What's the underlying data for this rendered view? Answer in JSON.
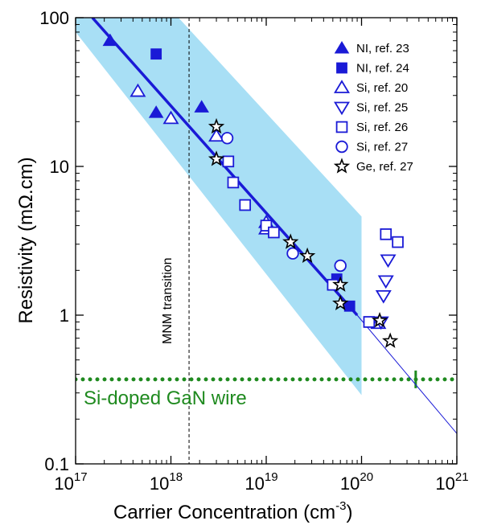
{
  "chart_data": {
    "type": "scatter",
    "x_scale": "log",
    "y_scale": "log",
    "xlim": [
      1e+17,
      1e+21
    ],
    "ylim": [
      0.1,
      100
    ],
    "xlabel": "Carrier Concentration (cm",
    "xlabel_superscript": "-3",
    "xlabel_suffix": ")",
    "ylabel": "Resistivity (mΩ.cm)",
    "x_ticks": [
      {
        "value": 1e+17,
        "base": "10",
        "exp": "17"
      },
      {
        "value": 1e+18,
        "base": "10",
        "exp": "18"
      },
      {
        "value": 1e+19,
        "base": "10",
        "exp": "19"
      },
      {
        "value": 1e+20,
        "base": "10",
        "exp": "20"
      },
      {
        "value": 1e+21,
        "base": "10",
        "exp": "21"
      }
    ],
    "y_ticks": [
      {
        "value": 0.1,
        "label": "0.1"
      },
      {
        "value": 1,
        "label": "1"
      },
      {
        "value": 10,
        "label": "10"
      },
      {
        "value": 100,
        "label": "100"
      }
    ],
    "legend_position": "top-right",
    "colors": {
      "blue": "#1a1ad6",
      "band": "#a8dff5",
      "green": "#1f8a1f",
      "black": "#000000"
    },
    "band_polygon": [
      [
        1e+17,
        100
      ],
      [
        1.2e+18,
        100
      ],
      [
        1e+20,
        4.6
      ],
      [
        1e+20,
        0.29
      ],
      [
        1e+17,
        100
      ]
    ],
    "band_lower_edge": [
      [
        1e+17,
        80
      ],
      [
        1e+20,
        0.29
      ]
    ],
    "fit_line": {
      "points": [
        [
          1.5e+17,
          100
        ],
        [
          9e+19,
          1
        ]
      ],
      "extension": [
        [
          9e+19,
          1
        ],
        [
          1e+21,
          0.16
        ]
      ]
    },
    "wire_level": {
      "value": 0.37,
      "label": "Si-doped GaN wire",
      "marker_x": 3.7e+20
    },
    "mnm_transition": {
      "x": 1.55e+18,
      "label": "MNM transition"
    },
    "series": [
      {
        "name": "NI, ref. 23",
        "marker": "triangle-up-filled",
        "color": "#1a1ad6",
        "points": [
          [
            2.3e+17,
            70
          ],
          [
            7e+17,
            23
          ],
          [
            2.1e+18,
            25
          ]
        ]
      },
      {
        "name": "NI, ref. 24",
        "marker": "square-filled",
        "color": "#1a1ad6",
        "points": [
          [
            7e+17,
            57
          ],
          [
            5.5e+19,
            1.75
          ],
          [
            7.5e+19,
            1.15
          ]
        ]
      },
      {
        "name": "Si, ref. 20",
        "marker": "triangle-up-open",
        "color": "#1a1ad6",
        "points": [
          [
            4.5e+17,
            32
          ],
          [
            1e+18,
            21
          ],
          [
            3e+18,
            16
          ],
          [
            1e+19,
            4.2
          ],
          [
            1e+19,
            3.8
          ],
          [
            1.5e+20,
            0.88
          ]
        ]
      },
      {
        "name": "Si, ref. 25",
        "marker": "triangle-down-open",
        "color": "#1a1ad6",
        "points": [
          [
            1.9e+20,
            2.35
          ],
          [
            1.8e+20,
            1.7
          ],
          [
            1.7e+20,
            1.35
          ],
          [
            1.6e+20,
            0.9
          ]
        ]
      },
      {
        "name": "Si, ref. 26",
        "marker": "square-open",
        "color": "#1a1ad6",
        "points": [
          [
            4e+18,
            10.8
          ],
          [
            4.5e+18,
            7.8
          ],
          [
            6e+18,
            5.5
          ],
          [
            1e+19,
            4
          ],
          [
            1.2e+19,
            3.6
          ],
          [
            5e+19,
            1.6
          ],
          [
            1.8e+20,
            3.5
          ],
          [
            2.4e+20,
            3.1
          ],
          [
            1.2e+20,
            0.9
          ]
        ]
      },
      {
        "name": "Si, ref. 27",
        "marker": "circle-open",
        "color": "#1a1ad6",
        "points": [
          [
            3.9e+18,
            15.5
          ],
          [
            1.9e+19,
            2.6
          ],
          [
            6e+19,
            2.15
          ]
        ]
      },
      {
        "name": "Ge, ref. 27",
        "marker": "star-open",
        "color": "#000000",
        "points": [
          [
            3e+18,
            18.5
          ],
          [
            3e+18,
            11.2
          ],
          [
            1.8e+19,
            3.1
          ],
          [
            2.7e+19,
            2.5
          ],
          [
            6e+19,
            1.6
          ],
          [
            6e+19,
            1.2
          ],
          [
            1.55e+20,
            0.92
          ],
          [
            2e+20,
            0.67
          ]
        ]
      }
    ]
  }
}
